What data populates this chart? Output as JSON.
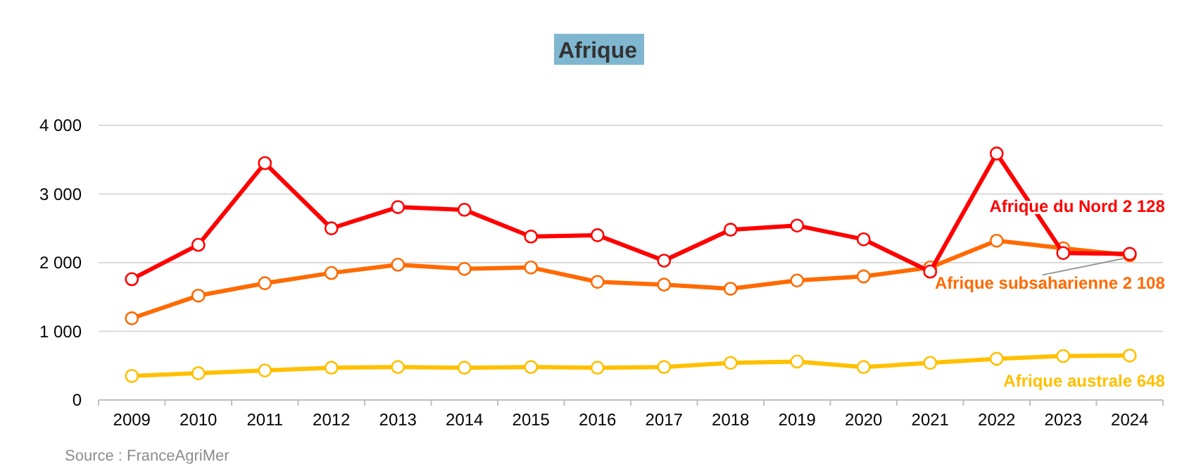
{
  "chart_data": {
    "type": "line",
    "title": "Afrique",
    "categories": [
      "2009",
      "2010",
      "2011",
      "2012",
      "2013",
      "2014",
      "2015",
      "2016",
      "2017",
      "2018",
      "2019",
      "2020",
      "2021",
      "2022",
      "2023",
      "2024"
    ],
    "series": [
      {
        "name": "Afrique du Nord",
        "color": "#ff0000",
        "values": [
          1760,
          2260,
          3450,
          2500,
          2810,
          2770,
          2380,
          2400,
          2030,
          2480,
          2540,
          2340,
          1870,
          3590,
          2140,
          2128
        ],
        "value_labels": [
          null,
          null,
          null,
          null,
          null,
          null,
          null,
          null,
          null,
          null,
          null,
          null,
          null,
          null,
          null,
          "2 128"
        ]
      },
      {
        "name": "Afrique subsaharienne",
        "color": "#ff6a00",
        "values": [
          1190,
          1520,
          1700,
          1850,
          1970,
          1910,
          1930,
          1720,
          1680,
          1620,
          1740,
          1800,
          1930,
          2320,
          2210,
          2108
        ],
        "value_labels": [
          null,
          null,
          null,
          null,
          null,
          null,
          null,
          null,
          null,
          null,
          null,
          null,
          null,
          null,
          null,
          "2 108"
        ]
      },
      {
        "name": "Afrique australe",
        "color": "#ffc000",
        "values": [
          350,
          390,
          430,
          470,
          480,
          470,
          480,
          470,
          480,
          540,
          560,
          480,
          540,
          600,
          640,
          648
        ],
        "value_labels": [
          null,
          null,
          null,
          null,
          null,
          null,
          null,
          null,
          null,
          null,
          null,
          null,
          null,
          null,
          null,
          "648"
        ]
      }
    ],
    "ylim": [
      0,
      4000
    ],
    "yticks": [
      {
        "value": 0,
        "label": "0"
      },
      {
        "value": 1000,
        "label": "1 000"
      },
      {
        "value": 2000,
        "label": "2 000"
      },
      {
        "value": 3000,
        "label": "3 000"
      },
      {
        "value": 4000,
        "label": "4 000"
      }
    ],
    "grid": "y",
    "marker": "circle",
    "line_style": "solid",
    "annotations": [
      "Source : FranceAgriMer"
    ]
  }
}
